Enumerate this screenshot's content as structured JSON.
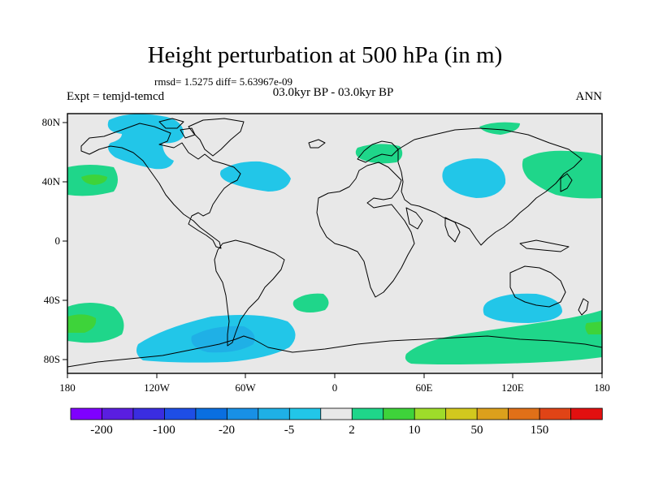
{
  "title": "Height perturbation at 500 hPa (in m)",
  "stats": "rmsd= 1.5275 diff= 5.63967e-09",
  "left_label": "Expt = temjd-temcd",
  "center_label": "03.0kyr BP - 03.0kyr BP",
  "right_label": "ANN",
  "axes": {
    "x_ticks": [
      "180",
      "120W",
      "60W",
      "0",
      "60E",
      "120E",
      "180"
    ],
    "y_ticks": [
      "80N",
      "40N",
      "0",
      "40S",
      "80S"
    ],
    "lon_range": [
      -180,
      180
    ],
    "lat_range": [
      -90,
      90
    ]
  },
  "colorbar": {
    "labels": [
      "-200",
      "-100",
      "-20",
      "-5",
      "2",
      "10",
      "50",
      "150"
    ],
    "colors": [
      "#7f00ff",
      "#5a1ee0",
      "#3a2de0",
      "#1e4ee6",
      "#0a6fe0",
      "#1890e6",
      "#1fb0e6",
      "#22c6e8",
      "#e8e8e8",
      "#1fd68a",
      "#3ed33a",
      "#9edc2a",
      "#d2c81e",
      "#dca01c",
      "#e07018",
      "#e04416",
      "#e21010"
    ]
  },
  "colors": {
    "ocean_bg": "#e8e8e8",
    "light_blue": "#22c6e8",
    "mid_blue": "#1fb0e6",
    "teal_green": "#1fd68a",
    "green": "#3ed33a"
  }
}
